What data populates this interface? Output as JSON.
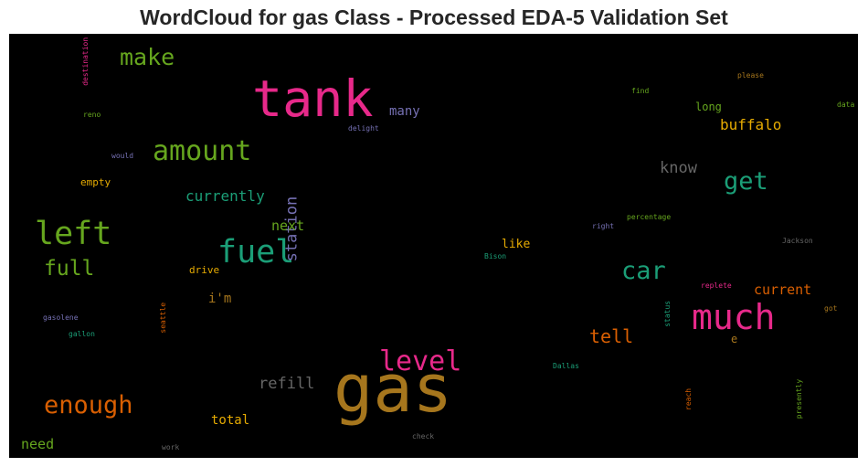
{
  "chart_data": {
    "type": "wordcloud",
    "title": "WordCloud for gas Class - Processed EDA-5 Validation Set",
    "background": "#000000",
    "colormap": "Dark2",
    "colors": {
      "pink": "#e7298a",
      "green": "#66a61e",
      "teal": "#1b9e77",
      "orange": "#d95f02",
      "gold": "#e6ab02",
      "brown": "#a6761d",
      "purple": "#7570b3",
      "gray": "#666666"
    },
    "words": [
      {
        "text": "gas",
        "color": "brown"
      },
      {
        "text": "tank",
        "color": "pink"
      },
      {
        "text": "much",
        "color": "pink"
      },
      {
        "text": "fuel",
        "color": "teal"
      },
      {
        "text": "left",
        "color": "green"
      },
      {
        "text": "amount",
        "color": "green"
      },
      {
        "text": "level",
        "color": "pink"
      },
      {
        "text": "enough",
        "color": "orange"
      },
      {
        "text": "car",
        "color": "teal"
      },
      {
        "text": "get",
        "color": "teal"
      },
      {
        "text": "make",
        "color": "green"
      },
      {
        "text": "full",
        "color": "green"
      },
      {
        "text": "station",
        "color": "purple"
      },
      {
        "text": "know",
        "color": "gray"
      },
      {
        "text": "refill",
        "color": "gray"
      },
      {
        "text": "tell",
        "color": "orange"
      },
      {
        "text": "currently",
        "color": "teal"
      },
      {
        "text": "buffalo",
        "color": "gold"
      },
      {
        "text": "current",
        "color": "orange"
      },
      {
        "text": "need",
        "color": "green"
      },
      {
        "text": "next",
        "color": "green"
      },
      {
        "text": "many",
        "color": "purple"
      },
      {
        "text": "total",
        "color": "gold"
      },
      {
        "text": "i'm",
        "color": "brown"
      },
      {
        "text": "like",
        "color": "gold"
      },
      {
        "text": "long",
        "color": "green"
      },
      {
        "text": "drive",
        "color": "gold"
      },
      {
        "text": "e",
        "color": "brown"
      },
      {
        "text": "empty",
        "color": "gold"
      },
      {
        "text": "destination",
        "color": "pink"
      },
      {
        "text": "reno",
        "color": "green"
      },
      {
        "text": "would",
        "color": "purple"
      },
      {
        "text": "delight",
        "color": "purple"
      },
      {
        "text": "find",
        "color": "green"
      },
      {
        "text": "please",
        "color": "brown"
      },
      {
        "text": "data",
        "color": "green"
      },
      {
        "text": "percentage",
        "color": "green"
      },
      {
        "text": "right",
        "color": "purple"
      },
      {
        "text": "Jackson",
        "color": "gray"
      },
      {
        "text": "Bison",
        "color": "teal"
      },
      {
        "text": "replete",
        "color": "pink"
      },
      {
        "text": "status",
        "color": "teal"
      },
      {
        "text": "got",
        "color": "brown"
      },
      {
        "text": "gasolene",
        "color": "purple"
      },
      {
        "text": "gallon",
        "color": "teal"
      },
      {
        "text": "seattle",
        "color": "orange"
      },
      {
        "text": "Dallas",
        "color": "teal"
      },
      {
        "text": "reach",
        "color": "orange"
      },
      {
        "text": "presently",
        "color": "green"
      },
      {
        "text": "check",
        "color": "gray"
      },
      {
        "text": "work",
        "color": "gray"
      }
    ]
  }
}
